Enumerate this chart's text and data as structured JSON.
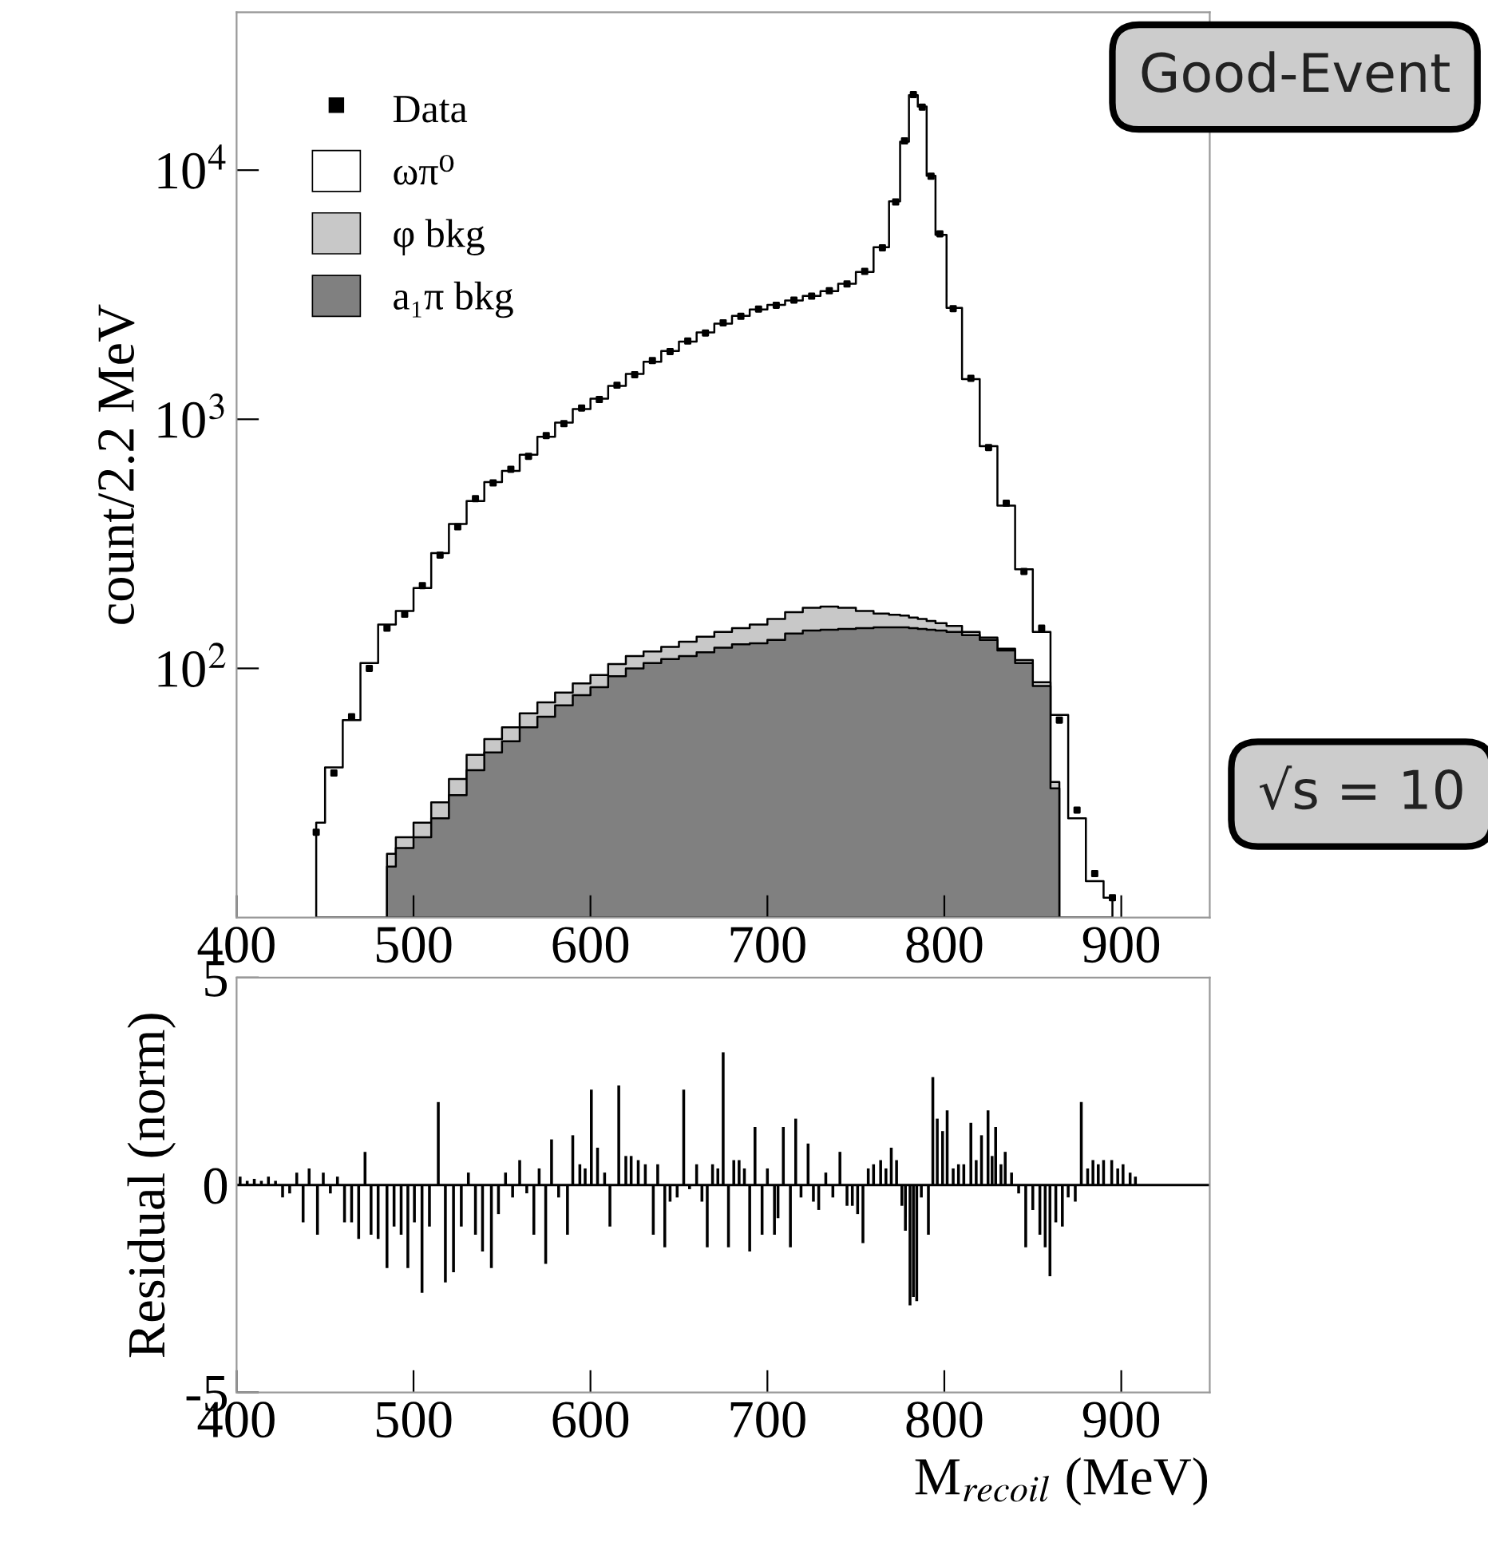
{
  "chart_data": [
    {
      "type": "area",
      "ylabel": "count/2.2 MeV",
      "log": true,
      "legend": "top left",
      "xlim": [
        400,
        950
      ],
      "xticks": [
        400,
        500,
        600,
        700,
        800,
        900
      ],
      "ylim": [
        10,
        43000
      ],
      "yticks": [
        {
          "value": 100,
          "label": "10$^{2}$"
        },
        {
          "value": 1000,
          "label": "10$^{3}$"
        },
        {
          "value": 10000,
          "label": "10$^{4}$"
        }
      ],
      "x": [
        445,
        455,
        465,
        475,
        485,
        495,
        505,
        515,
        525,
        535,
        545,
        555,
        565,
        575,
        585,
        595,
        605,
        615,
        625,
        635,
        645,
        655,
        665,
        675,
        685,
        695,
        705,
        715,
        725,
        735,
        745,
        755,
        765,
        772.5,
        777.5,
        782.5,
        787.5,
        792.5,
        797.5,
        805,
        815,
        825,
        835,
        845,
        855,
        865,
        875,
        885,
        895
      ],
      "series": [
        {
          "name": "ωπ⁰",
          "color": "#ffffff",
          "values": [
            24,
            40,
            62,
            105,
            150,
            170,
            210,
            290,
            380,
            470,
            560,
            620,
            720,
            850,
            970,
            1100,
            1210,
            1360,
            1520,
            1700,
            1880,
            2050,
            2230,
            2420,
            2600,
            2760,
            2880,
            3000,
            3130,
            3270,
            3500,
            3900,
            4900,
            7500,
            13000,
            20000,
            18000,
            9500,
            5500,
            2800,
            1450,
            780,
            450,
            250,
            140,
            65,
            25,
            14,
            12
          ]
        },
        {
          "name": "φ bkg",
          "color": "#c8c8c8",
          "values": [
            null,
            null,
            null,
            null,
            18,
            21,
            24,
            29,
            36,
            45,
            52,
            58,
            66,
            73,
            80,
            87,
            94,
            104,
            112,
            117,
            122,
            128,
            134,
            140,
            145,
            150,
            158,
            168,
            175,
            177,
            175,
            170,
            166,
            164,
            163,
            160,
            158,
            155,
            152,
            148,
            140,
            133,
            120,
            108,
            88,
            35,
            null,
            null,
            null
          ]
        },
        {
          "name": "a₁π bkg",
          "color": "#808080",
          "values": [
            null,
            null,
            null,
            null,
            16,
            19,
            21,
            25,
            31,
            39,
            46,
            51,
            58,
            64,
            71,
            78,
            84,
            93,
            100,
            105,
            109,
            112,
            116,
            121,
            125,
            126,
            130,
            138,
            142,
            143,
            144,
            145,
            146,
            146,
            146,
            145,
            144,
            143,
            142,
            140,
            136,
            130,
            118,
            105,
            85,
            33,
            null,
            null,
            null
          ]
        },
        {
          "name": "Data",
          "type": "scatter",
          "marker": "square",
          "color": "#000000",
          "values": [
            22,
            38,
            64,
            100,
            145,
            165,
            215,
            285,
            370,
            480,
            555,
            630,
            710,
            860,
            960,
            1110,
            1200,
            1370,
            1510,
            1720,
            1870,
            2060,
            2220,
            2440,
            2590,
            2770,
            2870,
            3010,
            3120,
            3280,
            3490,
            3920,
            4880,
            7450,
            13100,
            20100,
            17900,
            9450,
            5550,
            2780,
            1460,
            770,
            460,
            245,
            145,
            62,
            27,
            15,
            12
          ]
        }
      ],
      "annotations": [
        "Good-Event",
        "√s = 10"
      ]
    },
    {
      "type": "bar",
      "ylabel": "Residual (norm)",
      "xlabel": "M$_{recoil}$ (MeV)",
      "color": "#000000",
      "xlim": [
        400,
        950
      ],
      "xticks": [
        400,
        500,
        600,
        700,
        800,
        900
      ],
      "ylim": [
        -5,
        5
      ],
      "yticks": [
        -5,
        0,
        5
      ],
      "ref_lines": [
        {
          "axis": "y",
          "value": 0,
          "color": "#000000"
        }
      ],
      "x": [
        402,
        406,
        410,
        414,
        418,
        422,
        426,
        430,
        434,
        437.6,
        441,
        445.7,
        449,
        453,
        457,
        461,
        465,
        469,
        472.6,
        476,
        480,
        485,
        489,
        493,
        496.8,
        500.5,
        504.8,
        509,
        514,
        518,
        522.6,
        527,
        531,
        535,
        539,
        544,
        548,
        552,
        556,
        560,
        564,
        568,
        571,
        574.7,
        578,
        582,
        587,
        590,
        594,
        597,
        600.5,
        604,
        608,
        611,
        616,
        620,
        623,
        627,
        631,
        635.5,
        638,
        642,
        645,
        649,
        652.7,
        656,
        660,
        663,
        666,
        669,
        672,
        675,
        678,
        681,
        684,
        687,
        690,
        693,
        697,
        700,
        704,
        706,
        709,
        713,
        716,
        719,
        723,
        726,
        729,
        733,
        737,
        741,
        745,
        748,
        751,
        754,
        757,
        760,
        764,
        767,
        770,
        773,
        776,
        778,
        780.6,
        782.5,
        784.4,
        787,
        791,
        793.5,
        796,
        799,
        801.6,
        805,
        808,
        811,
        815,
        818,
        821,
        824.7,
        827,
        829,
        832,
        834.4,
        838,
        842,
        846,
        850,
        854,
        857,
        859.7,
        863,
        866.7,
        870,
        874,
        877.4,
        881,
        884,
        887,
        890,
        894.6,
        898,
        901,
        905,
        908
      ],
      "values": [
        0.2,
        0.1,
        0.15,
        0.1,
        0.2,
        0.1,
        -0.3,
        -0.2,
        0.3,
        -0.9,
        0.4,
        -1.2,
        0.3,
        -0.2,
        0.2,
        -0.9,
        -0.9,
        -1.3,
        0.8,
        -1.2,
        -1.3,
        -2.0,
        -1.0,
        -1.2,
        -2.0,
        -0.9,
        -2.6,
        -1.0,
        2.0,
        -2.35,
        -2.1,
        -1.0,
        0.3,
        -1.2,
        -1.6,
        -2.0,
        -0.7,
        0.3,
        -0.3,
        0.6,
        -0.2,
        -1.2,
        0.4,
        -1.9,
        1.1,
        -0.3,
        -1.2,
        1.2,
        0.5,
        0.4,
        2.3,
        0.9,
        0.3,
        -1.0,
        2.4,
        0.7,
        0.7,
        0.6,
        0.5,
        -1.2,
        0.5,
        -1.5,
        -0.4,
        -0.3,
        2.3,
        -0.1,
        0.5,
        -0.4,
        -1.5,
        0.5,
        0.4,
        3.2,
        -1.5,
        0.6,
        0.6,
        0.4,
        -1.6,
        1.4,
        -1.2,
        0.4,
        -1.2,
        -0.8,
        1.4,
        -1.5,
        1.6,
        -0.3,
        1.0,
        -0.4,
        -0.6,
        0.3,
        -0.3,
        0.8,
        -0.5,
        -0.5,
        -0.7,
        -1.4,
        0.4,
        0.5,
        0.6,
        0.4,
        0.9,
        0.6,
        -0.5,
        -1.1,
        -2.9,
        -2.7,
        -2.8,
        -0.3,
        -1.2,
        2.6,
        1.6,
        1.3,
        1.8,
        0.4,
        0.5,
        0.5,
        1.5,
        0.6,
        1.2,
        1.8,
        0.7,
        1.4,
        0.5,
        0.8,
        0.3,
        -0.2,
        -1.5,
        -0.6,
        -1.2,
        -1.5,
        -2.2,
        -0.9,
        -1.0,
        -0.3,
        -0.4,
        2.0,
        0.4,
        0.6,
        0.5,
        0.6,
        0.6,
        0.4,
        0.5,
        0.3,
        0.2
      ]
    }
  ]
}
